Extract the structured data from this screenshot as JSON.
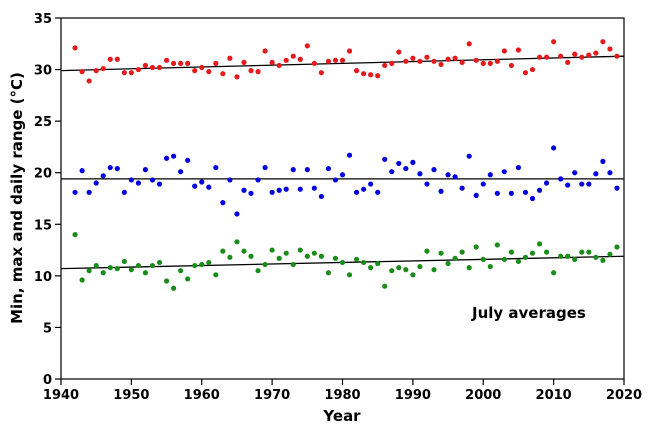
{
  "chart_data": {
    "type": "scatter",
    "title": "",
    "xlabel": "Year",
    "ylabel": "Min, max and daily range (°C)",
    "annotation": "July averages",
    "xlim": [
      1940,
      2020
    ],
    "ylim": [
      0,
      35
    ],
    "x_ticks": [
      1940,
      1950,
      1960,
      1970,
      1980,
      1990,
      2000,
      2010,
      2020
    ],
    "y_ticks": [
      0,
      5,
      10,
      15,
      20,
      25,
      30,
      35
    ],
    "grid": false,
    "legend": "none",
    "x": [
      1942,
      1943,
      1944,
      1945,
      1946,
      1947,
      1948,
      1949,
      1950,
      1951,
      1952,
      1953,
      1954,
      1955,
      1956,
      1957,
      1958,
      1959,
      1960,
      1961,
      1962,
      1963,
      1964,
      1965,
      1966,
      1967,
      1968,
      1969,
      1970,
      1971,
      1972,
      1973,
      1974,
      1975,
      1976,
      1977,
      1978,
      1979,
      1980,
      1981,
      1982,
      1983,
      1984,
      1985,
      1986,
      1987,
      1988,
      1989,
      1990,
      1991,
      1992,
      1993,
      1994,
      1995,
      1996,
      1997,
      1998,
      1999,
      2000,
      2001,
      2002,
      2003,
      2004,
      2005,
      2006,
      2007,
      2008,
      2009,
      2010,
      2011,
      2012,
      2013,
      2014,
      2015,
      2016,
      2017,
      2018,
      2019
    ],
    "series": [
      {
        "color": "#e41a1c",
        "trend": [
          29.9,
          31.3
        ],
        "values": [
          32.1,
          29.8,
          28.9,
          29.9,
          30.1,
          31.0,
          31.0,
          29.7,
          29.7,
          30.0,
          30.4,
          30.2,
          30.2,
          30.9,
          30.6,
          30.6,
          30.6,
          29.9,
          30.2,
          29.8,
          30.6,
          29.6,
          31.1,
          29.3,
          30.7,
          29.9,
          29.8,
          31.8,
          30.7,
          30.4,
          30.9,
          31.3,
          31.0,
          32.3,
          30.6,
          29.7,
          30.8,
          30.9,
          30.9,
          31.8,
          29.9,
          29.6,
          29.5,
          29.4,
          30.4,
          30.6,
          31.7,
          30.8,
          31.1,
          30.8,
          31.2,
          30.8,
          30.5,
          31.0,
          31.1,
          30.7,
          32.5,
          30.9,
          30.6,
          30.6,
          30.8,
          31.8,
          30.4,
          31.9,
          29.7,
          30.0,
          31.2,
          31.2,
          32.7,
          31.3,
          30.7,
          31.5,
          31.2,
          31.4,
          31.6,
          32.7,
          32.0,
          31.3
        ]
      },
      {
        "color": "#0000dd",
        "trend": [
          19.4,
          19.4
        ],
        "values": [
          18.1,
          20.2,
          18.1,
          19.0,
          19.7,
          20.5,
          20.4,
          18.1,
          19.3,
          19.0,
          20.3,
          19.3,
          18.9,
          21.4,
          21.6,
          20.1,
          21.2,
          18.7,
          19.1,
          18.6,
          20.5,
          17.1,
          19.3,
          16.0,
          18.3,
          18.0,
          19.3,
          20.5,
          18.1,
          18.3,
          18.4,
          20.3,
          18.4,
          20.3,
          18.5,
          17.7,
          20.4,
          19.3,
          19.8,
          21.7,
          18.1,
          18.4,
          18.9,
          18.1,
          21.3,
          20.1,
          20.9,
          20.4,
          21.0,
          19.9,
          18.9,
          20.3,
          18.2,
          19.8,
          19.6,
          18.5,
          21.6,
          17.8,
          18.9,
          19.8,
          18.0,
          20.1,
          18.0,
          20.5,
          18.1,
          17.5,
          18.3,
          19.0,
          22.4,
          19.4,
          18.8,
          20.0,
          18.9,
          18.9,
          19.9,
          21.1,
          20.0,
          18.5
        ]
      },
      {
        "color": "#1a8c1a",
        "trend": [
          10.7,
          11.9
        ],
        "values": [
          14.0,
          9.6,
          10.5,
          11.0,
          10.3,
          10.8,
          10.7,
          11.4,
          10.6,
          11.0,
          10.3,
          11.0,
          11.3,
          9.5,
          8.8,
          10.5,
          9.7,
          11.0,
          11.1,
          11.3,
          10.1,
          12.4,
          11.8,
          13.3,
          12.4,
          11.9,
          10.5,
          11.1,
          12.5,
          11.7,
          12.2,
          11.1,
          12.5,
          11.9,
          12.2,
          11.9,
          10.3,
          11.7,
          11.3,
          10.1,
          11.6,
          11.3,
          10.8,
          11.2,
          9.0,
          10.5,
          10.8,
          10.6,
          10.1,
          10.9,
          12.4,
          10.6,
          12.2,
          11.2,
          11.7,
          12.3,
          10.8,
          12.8,
          11.6,
          10.9,
          13.0,
          11.6,
          12.3,
          11.4,
          11.8,
          12.2,
          13.1,
          12.3,
          10.3,
          11.9,
          11.9,
          11.6,
          12.3,
          12.3,
          11.8,
          11.5,
          12.1,
          12.8
        ]
      }
    ]
  }
}
